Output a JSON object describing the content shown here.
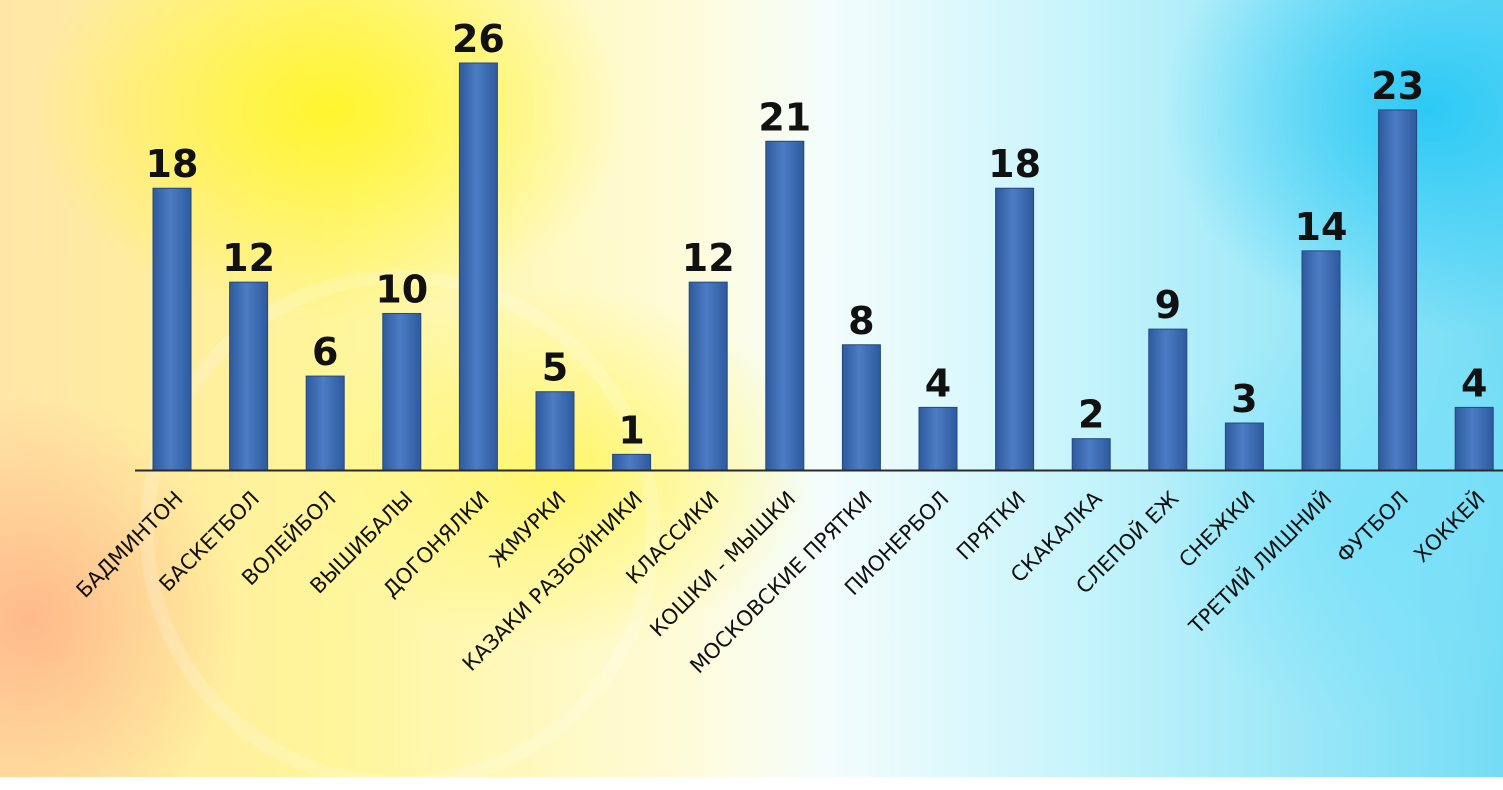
{
  "chart_data": {
    "type": "bar",
    "title": "",
    "xlabel": "",
    "ylabel": "",
    "ylim": [
      0,
      26
    ],
    "grid": false,
    "legend": "none",
    "categories": [
      "БАДМИНТОН",
      "БАСКЕТБОЛ",
      "ВОЛЕЙБОЛ",
      "ВЫШИБАЛЫ",
      "ДОГОНЯЛКИ",
      "ЖМУРКИ",
      "КАЗАКИ РАЗБОЙНИКИ",
      "КЛАССИКИ",
      "КОШКИ - МЫШКИ",
      "МОСКОВСКИЕ ПРЯТКИ",
      "ПИОНЕРБОЛ",
      "ПРЯТКИ",
      "СКАКАЛКА",
      "СЛЕПОЙ ЕЖ",
      "СНЕЖКИ",
      "ТРЕТИЙ ЛИШНИЙ",
      "ФУТБОЛ",
      "ХОККЕЙ"
    ],
    "values": [
      18,
      12,
      6,
      10,
      26,
      5,
      1,
      12,
      21,
      8,
      4,
      18,
      2,
      9,
      3,
      14,
      23,
      4
    ],
    "colors": {
      "bar": "#2e5a9e",
      "bar_light": "#4c7cc4",
      "axis": "#2b2b2b",
      "text": "#111111"
    }
  }
}
